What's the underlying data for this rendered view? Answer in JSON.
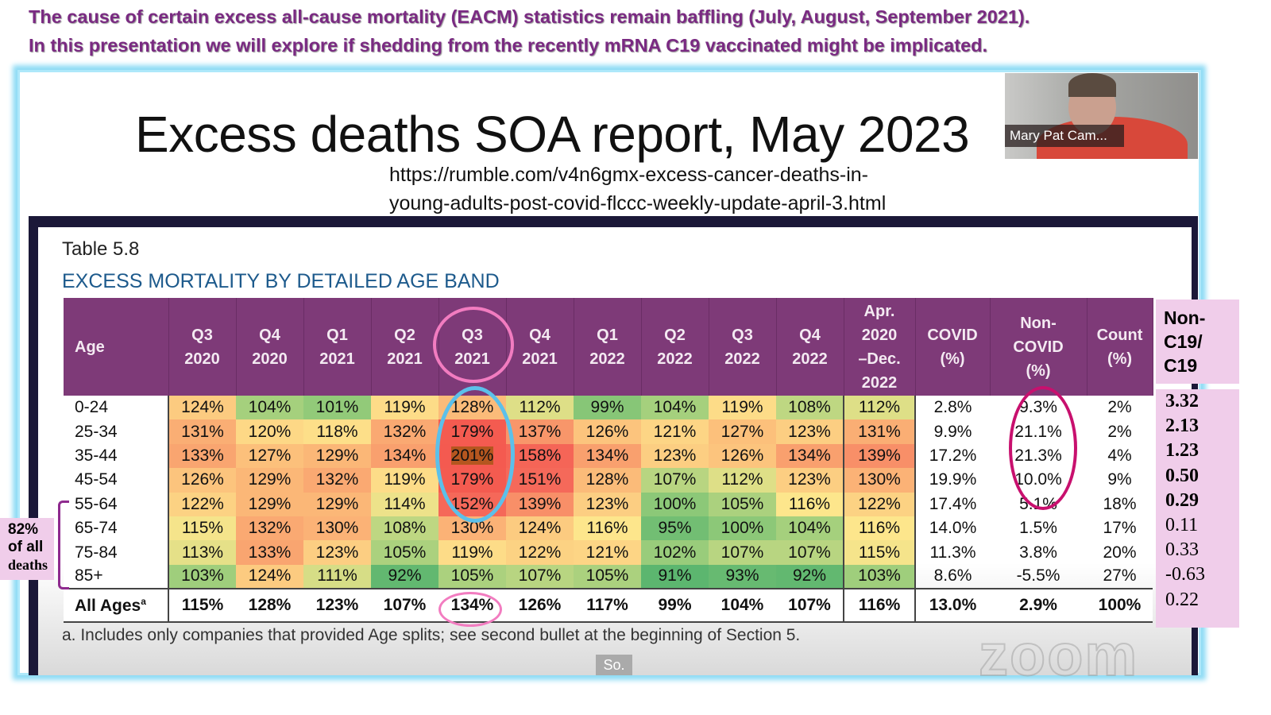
{
  "caption": {
    "line1": "The cause of certain excess all-cause mortality (EACM) statistics remain baffling (July, August, September 2021).",
    "line2": "In this presentation we will explore if shedding from the recently mRNA C19 vaccinated might be implicated."
  },
  "slide": {
    "title": "Excess deaths SOA report, May 2023",
    "url_line1": "https://rumble.com/v4n6gmx-excess-cancer-deaths-in-",
    "url_line2": "young-adults-post-covid-flccc-weekly-update-april-3.html"
  },
  "video": {
    "participant_name": "Mary Pat Cam..."
  },
  "table": {
    "label": "Table 5.8",
    "title": "EXCESS MORTALITY BY DETAILED AGE BAND",
    "headers": [
      [
        "Age"
      ],
      [
        "Q3",
        "2020"
      ],
      [
        "Q4",
        "2020"
      ],
      [
        "Q1",
        "2021"
      ],
      [
        "Q2",
        "2021"
      ],
      [
        "Q3",
        "2021"
      ],
      [
        "Q4",
        "2021"
      ],
      [
        "Q1",
        "2022"
      ],
      [
        "Q2",
        "2022"
      ],
      [
        "Q3",
        "2022"
      ],
      [
        "Q4",
        "2022"
      ],
      [
        "Apr.",
        "2020",
        "–Dec.",
        "2022"
      ],
      [
        "COVID",
        "(%)"
      ],
      [
        "Non-",
        "COVID",
        "(%)"
      ],
      [
        "Count",
        "(%)"
      ]
    ],
    "rows": [
      [
        "0-24",
        "124%",
        "104%",
        "101%",
        "119%",
        "128%",
        "112%",
        "99%",
        "104%",
        "119%",
        "108%",
        "112%",
        "2.8%",
        "9.3%",
        "2%"
      ],
      [
        "25-34",
        "131%",
        "120%",
        "118%",
        "132%",
        "179%",
        "137%",
        "126%",
        "121%",
        "127%",
        "123%",
        "131%",
        "9.9%",
        "21.1%",
        "2%"
      ],
      [
        "35-44",
        "133%",
        "127%",
        "129%",
        "134%",
        "201%",
        "158%",
        "134%",
        "123%",
        "126%",
        "134%",
        "139%",
        "17.2%",
        "21.3%",
        "4%"
      ],
      [
        "45-54",
        "126%",
        "129%",
        "132%",
        "119%",
        "179%",
        "151%",
        "128%",
        "107%",
        "112%",
        "123%",
        "130%",
        "19.9%",
        "10.0%",
        "9%"
      ],
      [
        "55-64",
        "122%",
        "129%",
        "129%",
        "114%",
        "152%",
        "139%",
        "123%",
        "100%",
        "105%",
        "116%",
        "122%",
        "17.4%",
        "5.1%",
        "18%"
      ],
      [
        "65-74",
        "115%",
        "132%",
        "130%",
        "108%",
        "130%",
        "124%",
        "116%",
        "95%",
        "100%",
        "104%",
        "116%",
        "14.0%",
        "1.5%",
        "17%"
      ],
      [
        "75-84",
        "113%",
        "133%",
        "123%",
        "105%",
        "119%",
        "122%",
        "121%",
        "102%",
        "107%",
        "107%",
        "115%",
        "11.3%",
        "3.8%",
        "20%"
      ],
      [
        "85+",
        "103%",
        "124%",
        "111%",
        "92%",
        "105%",
        "107%",
        "105%",
        "91%",
        "93%",
        "92%",
        "103%",
        "8.6%",
        "-5.5%",
        "27%"
      ]
    ],
    "all_ages": [
      "All Ages",
      "115%",
      "128%",
      "123%",
      "107%",
      "134%",
      "126%",
      "117%",
      "99%",
      "104%",
      "107%",
      "116%",
      "13.0%",
      "2.9%",
      "100%"
    ],
    "all_ages_sup": "a",
    "footnote": "a. Includes only companies that provided Age splits; see second bullet at the beginning of Section 5."
  },
  "ratio": {
    "header": [
      "Non-",
      "C19/",
      "C19"
    ],
    "values": [
      "3.32",
      "2.13",
      "1.23",
      "0.50",
      "0.29",
      "0.11",
      "0.33",
      "-0.63",
      "0.22"
    ],
    "bold_count": 5
  },
  "annotation": {
    "line1": "82%",
    "line2": "of all",
    "line3": "deaths"
  },
  "overlay": {
    "so_label": "So.",
    "watermark": "zoom"
  },
  "colors": {
    "header": "#7e3a78",
    "caption": "#7a2a82",
    "highlight_pink": "#f27cc0",
    "highlight_blue": "#5cc0ea",
    "highlight_magenta": "#c8106e"
  }
}
